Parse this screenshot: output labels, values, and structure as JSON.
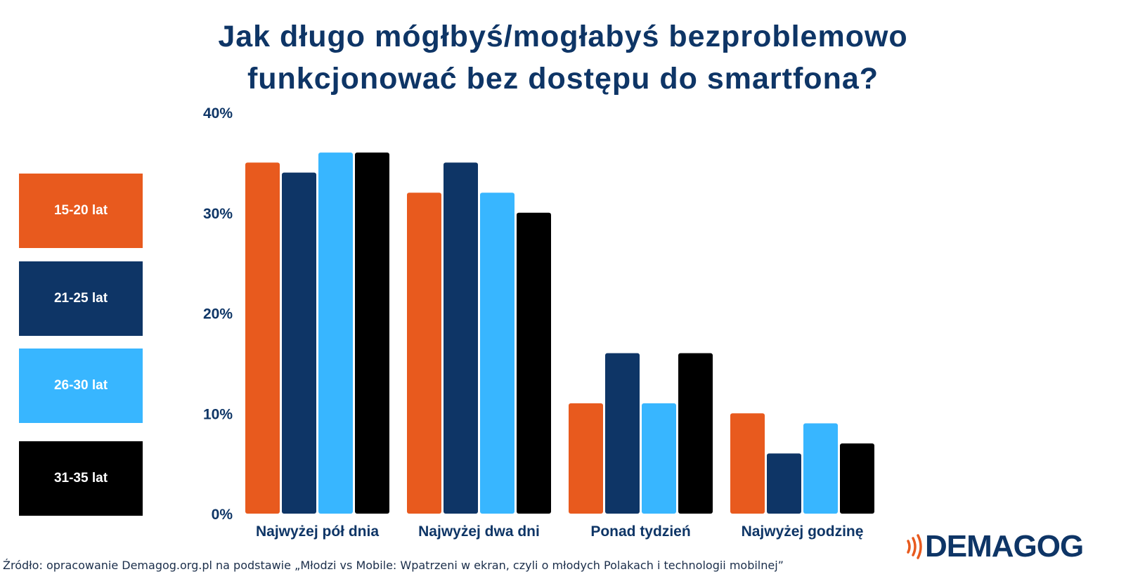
{
  "title_line1": "Jak długo mógłbyś/mogłabyś bezproblemowo",
  "title_line2": "funkcjonować bez dostępu do smartfona?",
  "source": "Źródło: opracowanie Demagog.org.pl na podstawie „Młodzi vs Mobile: Wpatrzeni w ekran, czyli o młodych Polakach i technologii mobilnej”",
  "logo": {
    "text": "DEMAGOG",
    "icon": "signal-waves-icon",
    "color": "#0e3566",
    "accent": "#e85a1e"
  },
  "colors": {
    "title": "#0e3566",
    "axis_text": "#0e3566"
  },
  "chart_data": {
    "type": "bar",
    "title": "Jak długo mógłbyś/mogłabyś bezproblemowo funkcjonować bez dostępu do smartfona?",
    "categories": [
      "Najwyżej pół dnia",
      "Najwyżej dwa dni",
      "Ponad tydzień",
      "Najwyżej godzinę"
    ],
    "series": [
      {
        "name": "15-20 lat",
        "color": "#e85a1e",
        "values": [
          35,
          32,
          11,
          10
        ]
      },
      {
        "name": "21-25 lat",
        "color": "#0e3566",
        "values": [
          34,
          35,
          16,
          6
        ]
      },
      {
        "name": "26-30 lat",
        "color": "#38b6ff",
        "values": [
          36,
          32,
          11,
          9
        ]
      },
      {
        "name": "31-35 lat",
        "color": "#000000",
        "values": [
          36,
          30,
          16,
          7
        ]
      }
    ],
    "yticks": [
      "0%",
      "10%",
      "20%",
      "30%",
      "40%"
    ],
    "ylim": [
      0,
      40
    ],
    "xlabel": "",
    "ylabel": "",
    "grid": false,
    "legend_position": "left"
  }
}
